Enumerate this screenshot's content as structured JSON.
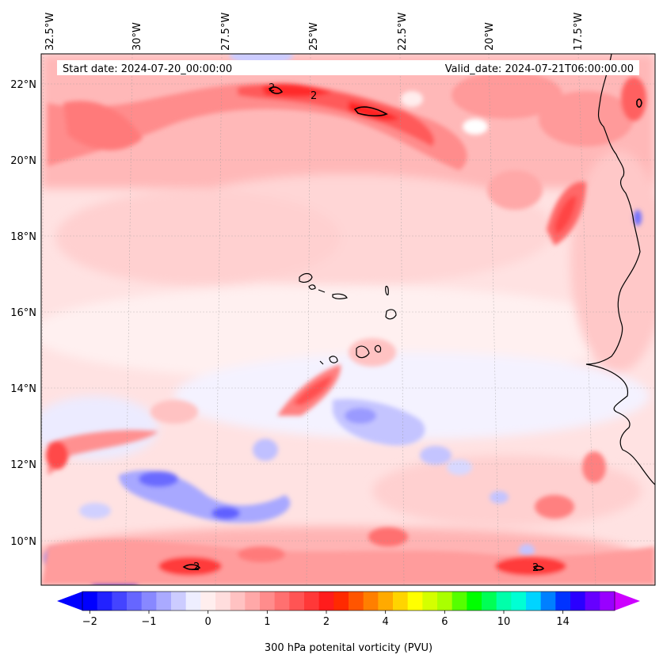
{
  "header": {
    "start_date": "Start date: 2024-07-20_00:00:00",
    "valid_date": "Valid_date: 2024-07-21T06:00:00.00"
  },
  "longitude_labels": [
    "32.5°W",
    "30°W",
    "27.5°W",
    "25°W",
    "22.5°W",
    "20°W",
    "17.5°W"
  ],
  "latitude_labels": [
    "22°N",
    "20°N",
    "18°N",
    "16°N",
    "14°N",
    "12°N",
    "10°N"
  ],
  "contour_labels": [
    "2",
    "2",
    "2",
    "2"
  ],
  "colorbar": {
    "label": "300 hPa potenital vorticity (PVU)",
    "tick_labels": [
      "−2",
      "−1",
      "0",
      "1",
      "2",
      "4",
      "6",
      "10",
      "14"
    ],
    "colors": [
      "#0000ff",
      "#2222ff",
      "#4444ff",
      "#6666ff",
      "#8888ff",
      "#aaaaff",
      "#ccccff",
      "#eeeeff",
      "#ffeeee",
      "#ffdddd",
      "#ffc2c2",
      "#ffa8a8",
      "#ff8c8c",
      "#ff7070",
      "#ff5454",
      "#ff3838",
      "#ff1c1c",
      "#ff2a00",
      "#ff5500",
      "#ff7f00",
      "#ffaa00",
      "#ffd400",
      "#ffff00",
      "#d4ff00",
      "#aaff00",
      "#55ff00",
      "#00ff00",
      "#00ff55",
      "#00ffaa",
      "#00ffd4",
      "#00d4ff",
      "#0080ff",
      "#0033ff",
      "#2a00ff",
      "#6600ff",
      "#9900ff"
    ],
    "under_color": "#0000ff",
    "over_color": "#cc00ff"
  },
  "map": {
    "background_color": "#ffe2e2",
    "coastline_color": "#000000"
  }
}
